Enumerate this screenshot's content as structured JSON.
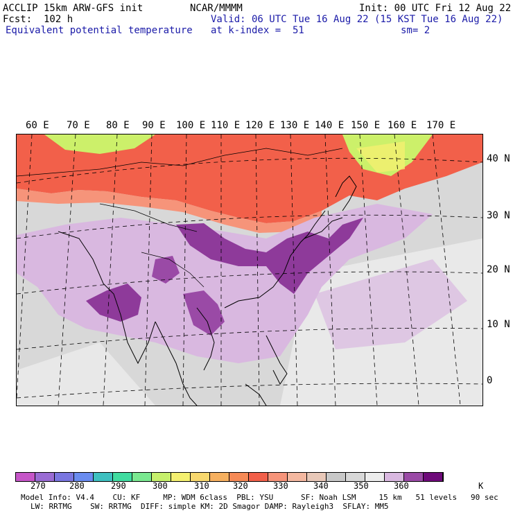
{
  "header": {
    "model": "ACCLIP 15km ARW-GFS init",
    "forecast": "Fcst:  102 h",
    "field": "Equivalent potential temperature",
    "center": "NCAR/MMMM",
    "init": "Init: 00 UTC Fri 12 Aug 22",
    "valid": "Valid: 06 UTC Tue 16 Aug 22 (15 KST Tue 16 Aug 22)",
    "level": "at k-index =  51",
    "smooth": "sm= 2"
  },
  "map": {
    "longitude_labels": [
      "60 E",
      "70 E",
      "80 E",
      "90 E",
      "100 E",
      "110 E",
      "120 E",
      "130 E",
      "140 E",
      "150 E",
      "160 E",
      "170 E"
    ],
    "latitude_labels": [
      "40 N",
      "30 N",
      "20 N",
      "10 N",
      "0"
    ],
    "colors": {
      "cold_edge": "#ccf06a",
      "warm_band": "#f26a4a",
      "warm_band_light": "#f6947a",
      "background_grey": "#d8d8d8",
      "light_grey": "#ececec",
      "light_purple": "#d9b8e0",
      "mid_purple": "#b27cc5",
      "dark_purple": "#8e3a9a"
    }
  },
  "colorbar": {
    "unit": "K",
    "tick_labels": [
      "270",
      "280",
      "290",
      "300",
      "310",
      "320",
      "330",
      "340",
      "350",
      "360"
    ],
    "colors": [
      "#c656c8",
      "#9a6cd4",
      "#7a76e0",
      "#6a8cf0",
      "#3ec0c0",
      "#40dca0",
      "#7ae890",
      "#c6f06c",
      "#f4f070",
      "#f8d86e",
      "#f6b060",
      "#f68a56",
      "#f2604a",
      "#f6947a",
      "#f4b8a0",
      "#e8c8b8",
      "#c8c8c8",
      "#d8d8d8",
      "#ececec",
      "#d9b8e0",
      "#9a4aa6",
      "#6e0a7a"
    ]
  },
  "footer": {
    "line1": "Model Info: V4.4    CU: KF     MP: WDM 6class  PBL: YSU      SF: Noah LSM     15 km   51 levels   90 sec",
    "line2": "LW: RRTMG    SW: RRTMG  DIFF: simple KM: 2D Smagor DAMP: Rayleigh3  SFLAY: MM5"
  }
}
